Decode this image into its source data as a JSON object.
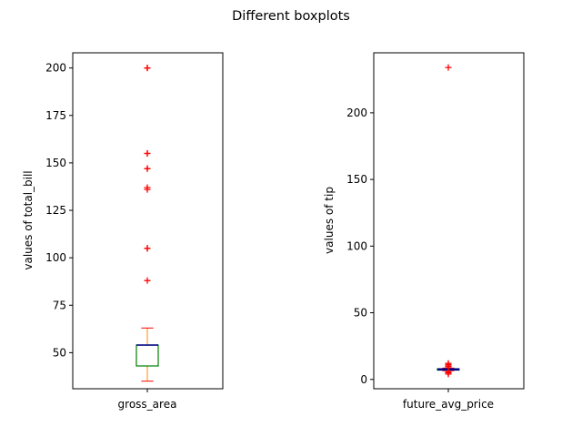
{
  "figure": {
    "title": "Different boxplots"
  },
  "chart_data": [
    {
      "type": "box",
      "category": "gross_area",
      "ylabel": "values of total_bill",
      "yticks": [
        50,
        75,
        100,
        125,
        150,
        175,
        200
      ],
      "ylim": [
        31,
        208
      ],
      "box": {
        "whisker_low": 35,
        "q1": 43,
        "median": 54,
        "q3": 54,
        "whisker_high": 63
      },
      "outliers": [
        88,
        105,
        105,
        136,
        137,
        147,
        147,
        155,
        155,
        200,
        200
      ],
      "colors": {
        "box": "#008000",
        "median": "#00008b",
        "whisker": "#ff8c00",
        "cap": "#ff0000",
        "flier": "#ff0000"
      }
    },
    {
      "type": "box",
      "category": "future_avg_price",
      "ylabel": "values of tip",
      "yticks": [
        0,
        50,
        100,
        150,
        200
      ],
      "ylim": [
        -7,
        245
      ],
      "box": {
        "whisker_low": 6.5,
        "q1": 7,
        "median": 7.5,
        "q3": 8,
        "whisker_high": 8.5
      },
      "outliers": [
        4,
        5,
        5.5,
        9.5,
        10,
        11,
        12,
        234
      ],
      "colors": {
        "box": "#008000",
        "median": "#00008b",
        "whisker": "#ff8c00",
        "cap": "#ff0000",
        "flier": "#ff0000"
      }
    }
  ]
}
